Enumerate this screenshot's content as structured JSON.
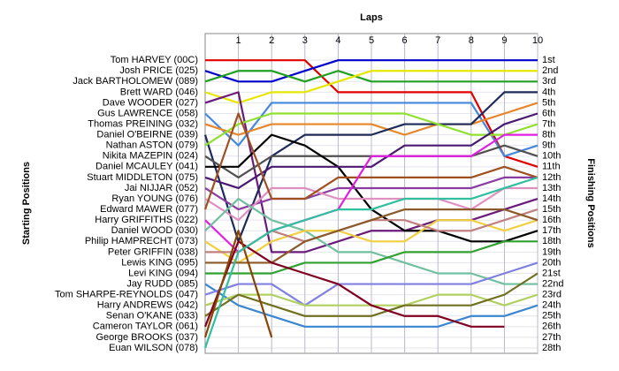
{
  "chart_data": {
    "type": "line",
    "title": "Laps",
    "y_label": "Starting Positions",
    "y2_label": "Finishing Positions",
    "x": [
      0,
      1,
      2,
      3,
      4,
      5,
      6,
      7,
      8,
      9,
      10
    ],
    "xlim": [
      0,
      10
    ],
    "xticks": [
      1,
      2,
      3,
      4,
      5,
      6,
      7,
      8,
      9,
      10
    ],
    "ylim": [
      28.5,
      -1.5
    ],
    "yticks": [
      {
        "value": 1,
        "label": "1st"
      },
      {
        "value": 2,
        "label": "2nd"
      },
      {
        "value": 3,
        "label": "3rd"
      },
      {
        "value": 4,
        "label": "4th"
      },
      {
        "value": 5,
        "label": "5th"
      },
      {
        "value": 6,
        "label": "6th"
      },
      {
        "value": 7,
        "label": "7th"
      },
      {
        "value": 8,
        "label": "8th"
      },
      {
        "value": 9,
        "label": "9th"
      },
      {
        "value": 10,
        "label": "10th"
      },
      {
        "value": 11,
        "label": "11th"
      },
      {
        "value": 12,
        "label": "12th"
      },
      {
        "value": 13,
        "label": "13th"
      },
      {
        "value": 14,
        "label": "14th"
      },
      {
        "value": 15,
        "label": "15th"
      },
      {
        "value": 16,
        "label": "16th"
      },
      {
        "value": 17,
        "label": "17th"
      },
      {
        "value": 18,
        "label": "18th"
      },
      {
        "value": 19,
        "label": "19th"
      },
      {
        "value": 20,
        "label": "20th"
      },
      {
        "value": 21,
        "label": "21st"
      },
      {
        "value": 22,
        "label": "22nd"
      },
      {
        "value": 23,
        "label": "23rd"
      },
      {
        "value": 24,
        "label": "24th"
      },
      {
        "value": 25,
        "label": "25th"
      },
      {
        "value": 26,
        "label": "26th"
      },
      {
        "value": 27,
        "label": "27th"
      },
      {
        "value": 28,
        "label": "28th"
      }
    ],
    "grid": true,
    "series": [
      {
        "name": "Tom HARVEY (00C)",
        "color": "#e00000",
        "values": [
          1,
          1,
          1,
          1,
          4,
          4,
          4,
          4,
          4,
          10,
          11
        ]
      },
      {
        "name": "Josh PRICE (025)",
        "color": "#0000cc",
        "values": [
          2,
          3,
          3,
          2,
          1,
          1,
          1,
          1,
          1,
          1,
          1
        ]
      },
      {
        "name": "Jack BARTHOLOMEW (089)",
        "color": "#20a020",
        "values": [
          3,
          2,
          2,
          3,
          2,
          3,
          3,
          3,
          3,
          3,
          3
        ]
      },
      {
        "name": "Brett WARD (046)",
        "color": "#e6e600",
        "values": [
          4,
          5,
          4,
          4,
          3,
          2,
          2,
          2,
          2,
          2,
          2
        ]
      },
      {
        "name": "Dave WOODER (027)",
        "color": "#6a1b7a",
        "values": [
          5,
          4,
          19,
          19,
          18,
          17,
          17,
          16,
          16,
          15,
          14
        ]
      },
      {
        "name": "Gus LAWRENCE (058)",
        "color": "#4488dd",
        "values": [
          6,
          9,
          5,
          5,
          5,
          5,
          5,
          5,
          5,
          10,
          9
        ]
      },
      {
        "name": "Thomas PREINING (032)",
        "color": "#e8862a",
        "values": [
          7,
          8,
          7,
          7,
          7,
          7,
          8,
          7,
          7,
          6,
          5
        ]
      },
      {
        "name": "Daniel O'BEIRNE (039)",
        "color": "#1e2a5a",
        "values": [
          8,
          18,
          10,
          8,
          8,
          8,
          7,
          7,
          7,
          4,
          4
        ]
      },
      {
        "name": "Nathan ASTON (079)",
        "color": "#90e030",
        "values": [
          9,
          7,
          6,
          6,
          6,
          6,
          6,
          7,
          8,
          8,
          7
        ]
      },
      {
        "name": "Nikita MAZEPIN (024)",
        "color": "#505050",
        "values": [
          10,
          12,
          10,
          10,
          10,
          10,
          10,
          10,
          10,
          9,
          10
        ]
      },
      {
        "name": "Daniel MCAULEY (041)",
        "color": "#000000",
        "values": [
          11,
          11,
          8,
          9,
          11,
          15,
          17,
          17,
          18,
          18,
          17
        ]
      },
      {
        "name": "Stuart MIDDLETON (075)",
        "color": "#4a1a70",
        "values": [
          12,
          13,
          11,
          11,
          11,
          11,
          9,
          9,
          9,
          7,
          6
        ]
      },
      {
        "name": "Jai NIJJAR (052)",
        "color": "#8a3ca0",
        "values": [
          13,
          15,
          14,
          14,
          13,
          13,
          13,
          13,
          13,
          12,
          12
        ]
      },
      {
        "name": "Ryan YOUNG (076)",
        "color": "#e090c0",
        "values": [
          14,
          16,
          13,
          13,
          14,
          14,
          14,
          14,
          15,
          13,
          13
        ]
      },
      {
        "name": "Edward MAWER (077)",
        "color": "#a05020",
        "values": [
          15,
          6,
          14,
          14,
          12,
          12,
          12,
          12,
          12,
          11,
          12
        ]
      },
      {
        "name": "Harry GRIFFITHS (022)",
        "color": "#e020e0",
        "values": [
          16,
          19,
          17,
          16,
          15,
          10,
          10,
          10,
          10,
          8,
          8
        ]
      },
      {
        "name": "Daniel WOOD (030)",
        "color": "#70c0a0",
        "values": [
          17,
          14,
          16,
          17,
          19,
          19,
          20,
          21,
          21,
          22,
          22
        ]
      },
      {
        "name": "Philip HAMPRECHT (073)",
        "color": "#f0d040",
        "values": [
          18,
          20,
          18,
          17,
          17,
          18,
          18,
          16,
          16,
          17,
          16
        ]
      },
      {
        "name": "Peter GRIFFIN (038)",
        "color": "#c08080",
        "values": [
          19,
          19,
          17,
          18,
          17,
          16,
          16,
          17,
          17,
          16,
          15
        ]
      },
      {
        "name": "Lewis KING (095)",
        "color": "#8b5a2b",
        "values": [
          20,
          20,
          20,
          18,
          17,
          16,
          15,
          15,
          15,
          15,
          16
        ]
      },
      {
        "name": "Levi KING (094)",
        "color": "#30a030",
        "values": [
          21,
          21,
          21,
          20,
          20,
          20,
          19,
          19,
          19,
          18,
          18
        ]
      },
      {
        "name": "Jay RUDD (085)",
        "color": "#3a86d0",
        "values": [
          22,
          24,
          25,
          26,
          26,
          26,
          26,
          26,
          25,
          25,
          24
        ]
      },
      {
        "name": "Tom SHARPE-REYNOLDS (047)",
        "color": "#8080e0",
        "values": [
          23,
          22,
          22,
          24,
          22,
          22,
          22,
          22,
          22,
          21,
          20
        ]
      },
      {
        "name": "Harry ANDREWS (042)",
        "color": "#b0d060",
        "values": [
          24,
          23,
          23,
          24,
          24,
          24,
          24,
          23,
          23,
          24,
          23
        ]
      },
      {
        "name": "Senan O'KANE (033)",
        "color": "#707020",
        "values": [
          25,
          23,
          24,
          25,
          25,
          25,
          24,
          24,
          24,
          23,
          21
        ]
      },
      {
        "name": "Cameron TAYLOR (061)",
        "color": "#800020",
        "values": [
          26,
          18,
          20,
          21,
          22,
          24,
          25,
          25,
          26,
          26,
          null
        ]
      },
      {
        "name": "George BROOKS (037)",
        "color": "#884400",
        "values": [
          27,
          17,
          27,
          null,
          null,
          null,
          null,
          null,
          null,
          null,
          null
        ]
      },
      {
        "name": "Euan WILSON (078)",
        "color": "#30c0a0",
        "values": [
          28,
          19,
          17,
          16,
          15,
          15,
          14,
          14,
          14,
          13,
          12
        ]
      }
    ]
  }
}
